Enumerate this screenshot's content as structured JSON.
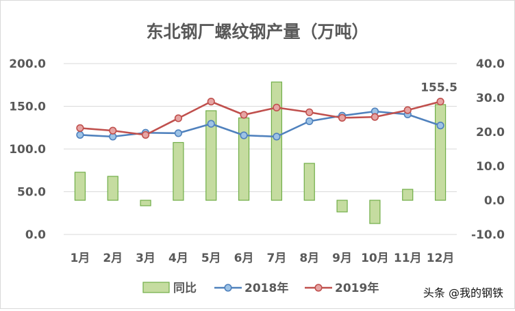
{
  "chart_data": {
    "type": "bar",
    "title": "东北钢厂螺纹钢产量（万吨）",
    "categories": [
      "1月",
      "2月",
      "3月",
      "4月",
      "5月",
      "6月",
      "7月",
      "8月",
      "9月",
      "10月",
      "11月",
      "12月"
    ],
    "y_left": {
      "ylim": [
        0,
        200
      ],
      "ticks": [
        "0.0",
        "50.0",
        "100.0",
        "150.0",
        "200.0"
      ]
    },
    "y_right": {
      "ylim": [
        -10,
        40
      ],
      "ticks": [
        "-10.0",
        "0.0",
        "10.0",
        "20.0",
        "30.0",
        "40.0"
      ]
    },
    "series": [
      {
        "name": "同比",
        "type": "bar",
        "axis": "right",
        "color": "#c5dca0",
        "stroke": "#70ad47",
        "values": [
          8.2,
          7.0,
          -1.6,
          16.9,
          26.2,
          24.1,
          34.6,
          10.8,
          -3.4,
          -6.8,
          3.2,
          28.0
        ]
      },
      {
        "name": "2018年",
        "type": "line",
        "axis": "left",
        "color": "#4f81bd",
        "values": [
          116.5,
          114.5,
          119.0,
          118.5,
          129.5,
          116.0,
          114.5,
          132.5,
          139.0,
          144.0,
          140.5,
          127.5
        ]
      },
      {
        "name": "2019年",
        "type": "line",
        "axis": "left",
        "color": "#c0504d",
        "values": [
          124.5,
          121.5,
          116.5,
          136.0,
          155.5,
          140.0,
          148.5,
          143.0,
          136.5,
          137.5,
          145.5,
          155.5
        ]
      }
    ],
    "annotation": "155.5",
    "legend_position": "bottom",
    "grid": true
  },
  "watermark": "头条 @我的钢铁"
}
